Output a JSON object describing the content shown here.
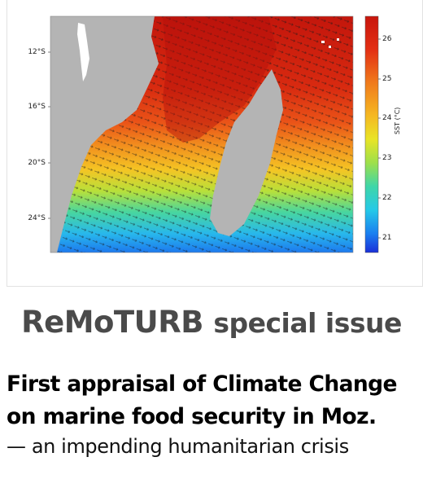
{
  "figure": {
    "y_ticks": [
      "12°S",
      "16°S",
      "20°S",
      "24°S"
    ],
    "colorbar": {
      "ticks": [
        "26",
        "25",
        "24",
        "23",
        "22",
        "21"
      ],
      "label": "SST (°C)"
    }
  },
  "issue": {
    "name": "ReMoTURB",
    "suffix": "special issue"
  },
  "headline": {
    "line1": "First appraisal of Climate Change",
    "line2": "on marine food security in Moz.",
    "line3": "— an impending humanitarian crisis"
  }
}
